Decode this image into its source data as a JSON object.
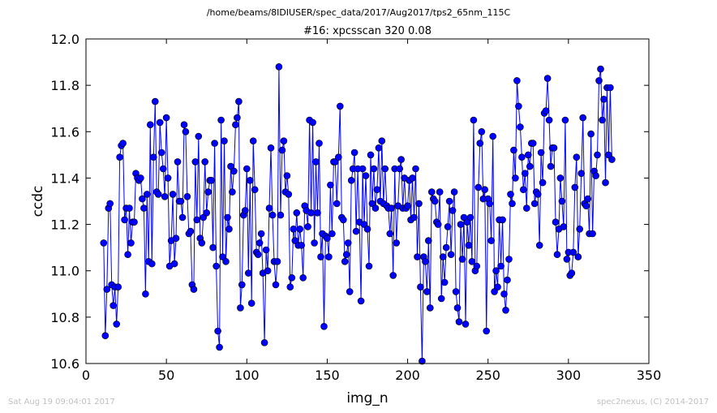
{
  "chart_data": {
    "type": "line",
    "suptitle": "/home/beams/8IDIUSER/spec_data/2017/Aug2017/tps2_65nm_115C",
    "title": "#16: xpcsscan 320 0.08",
    "xlabel": "img_n",
    "ylabel": "ccdc",
    "xlim": [
      0,
      350
    ],
    "ylim": [
      10.6,
      12.0
    ],
    "xticks": [
      0,
      50,
      100,
      150,
      200,
      250,
      300,
      350
    ],
    "yticks": [
      10.6,
      10.8,
      11.0,
      11.2,
      11.4,
      11.6,
      11.8,
      12.0
    ],
    "xtick_labels": [
      "0",
      "50",
      "100",
      "150",
      "200",
      "250",
      "300",
      "350"
    ],
    "ytick_labels": [
      "10.6",
      "10.8",
      "11.0",
      "11.2",
      "11.4",
      "11.6",
      "11.8",
      "12.0"
    ],
    "line_color": "#0000ff",
    "marker": "circle",
    "grid": false,
    "x_start": 11,
    "x_step": 1,
    "values": [
      11.12,
      10.72,
      10.92,
      11.27,
      11.29,
      10.94,
      10.85,
      10.93,
      10.77,
      10.93,
      11.49,
      11.54,
      11.55,
      11.22,
      11.27,
      11.07,
      11.27,
      11.12,
      11.21,
      11.21,
      11.42,
      11.4,
      11.39,
      11.4,
      11.31,
      11.27,
      10.9,
      11.33,
      11.04,
      11.63,
      11.03,
      11.49,
      11.73,
      11.34,
      11.33,
      11.64,
      11.51,
      11.44,
      11.32,
      11.66,
      11.4,
      11.02,
      11.13,
      11.33,
      11.03,
      11.14,
      11.47,
      11.3,
      11.3,
      11.23,
      11.63,
      11.6,
      11.32,
      11.16,
      11.17,
      10.94,
      10.92,
      11.47,
      11.22,
      11.58,
      11.14,
      11.12,
      11.23,
      11.47,
      11.25,
      11.34,
      11.39,
      11.39,
      11.1,
      11.55,
      11.02,
      10.74,
      10.67,
      11.65,
      11.06,
      11.56,
      11.04,
      11.23,
      11.18,
      11.45,
      11.34,
      11.43,
      11.63,
      11.66,
      11.73,
      10.84,
      10.94,
      11.24,
      11.26,
      11.44,
      10.99,
      11.39,
      10.86,
      11.56,
      11.35,
      11.08,
      11.07,
      11.12,
      11.16,
      10.99,
      10.69,
      11.09,
      11.0,
      11.27,
      11.53,
      11.24,
      11.04,
      10.94,
      11.04,
      11.88,
      11.24,
      11.52,
      11.56,
      11.34,
      11.41,
      11.33,
      10.93,
      10.97,
      11.18,
      11.13,
      11.25,
      11.11,
      11.18,
      11.11,
      10.97,
      11.28,
      11.26,
      11.19,
      11.65,
      11.25,
      11.64,
      11.12,
      11.47,
      11.25,
      11.55,
      11.06,
      11.16,
      10.76,
      11.15,
      11.14,
      11.06,
      11.37,
      11.16,
      11.47,
      11.47,
      11.29,
      11.49,
      11.71,
      11.23,
      11.22,
      11.04,
      11.07,
      11.12,
      10.91,
      11.39,
      11.44,
      11.51,
      11.17,
      11.44,
      11.21,
      10.87,
      11.44,
      11.2,
      11.41,
      11.18,
      11.02,
      11.5,
      11.29,
      11.44,
      11.27,
      11.35,
      11.53,
      11.3,
      11.56,
      11.29,
      11.44,
      11.28,
      11.27,
      11.16,
      11.27,
      10.98,
      11.44,
      11.12,
      11.28,
      11.44,
      11.48,
      11.27,
      11.4,
      11.27,
      11.28,
      11.39,
      11.22,
      11.4,
      11.23,
      11.44,
      11.06,
      11.29,
      10.93,
      10.61,
      11.06,
      11.04,
      10.91,
      11.13,
      10.84,
      11.34,
      11.31,
      11.3,
      11.21,
      11.2,
      11.34,
      10.88,
      11.06,
      10.95,
      11.1,
      11.19,
      11.3,
      11.07,
      11.26,
      11.34,
      10.91,
      10.84,
      10.78,
      11.2,
      11.05,
      11.23,
      10.77,
      11.21,
      11.11,
      11.23,
      11.04,
      11.65,
      11.0,
      11.02,
      11.36,
      11.55,
      11.6,
      11.31,
      11.35,
      10.74,
      11.31,
      11.29,
      11.13,
      11.58,
      10.91,
      11.0,
      10.93,
      11.22,
      11.02,
      11.22,
      10.9,
      10.83,
      10.96,
      11.05,
      11.33,
      11.29,
      11.52,
      11.4,
      11.82,
      11.71,
      11.62,
      11.49,
      11.35,
      11.42,
      11.27,
      11.5,
      11.45,
      11.55,
      11.55,
      11.29,
      11.34,
      11.33,
      11.11,
      11.51,
      11.38,
      11.68,
      11.69,
      11.83,
      11.65,
      11.45,
      11.53,
      11.53,
      11.21,
      11.07,
      11.18,
      11.4,
      11.3,
      11.19,
      11.65,
      11.05,
      11.08,
      10.98,
      10.99,
      11.08,
      11.36,
      11.49,
      11.06,
      11.18,
      11.42,
      11.66,
      11.29,
      11.28,
      11.31,
      11.16,
      11.59,
      11.16,
      11.43,
      11.41,
      11.5,
      11.82,
      11.87,
      11.65,
      11.74,
      11.38,
      11.79,
      11.5,
      11.79,
      11.48
    ]
  },
  "footer": {
    "left": "Sat Aug 19 09:04:01 2017",
    "right": "spec2nexus, (C) 2014-2017"
  }
}
